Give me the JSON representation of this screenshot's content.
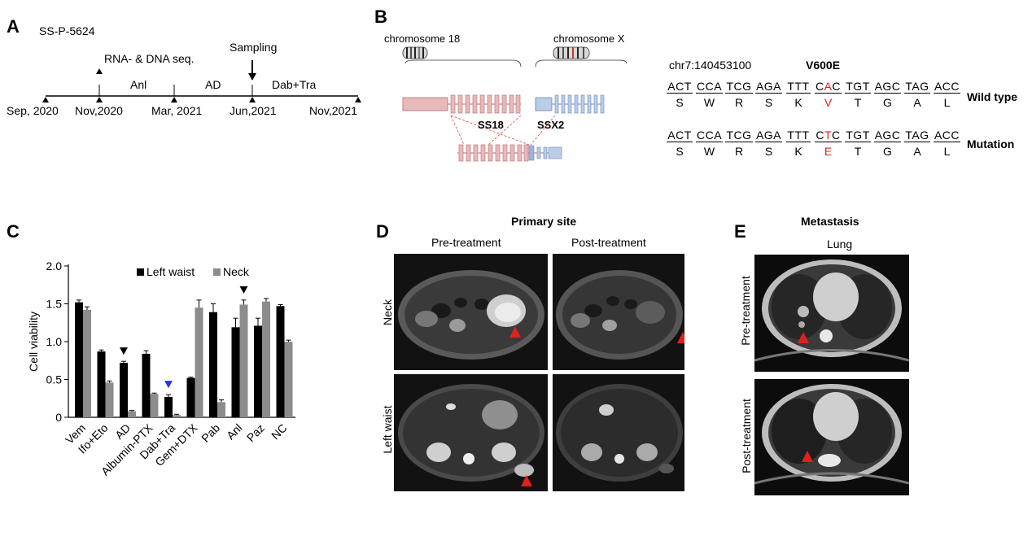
{
  "panels": {
    "a": "A",
    "b": "B",
    "c": "C",
    "d": "D",
    "e": "E"
  },
  "panelA": {
    "case_id": "SS-P-5624",
    "seq_label": "RNA- & DNA seq.",
    "sampling_label": "Sampling",
    "dates": [
      "Sep, 2020",
      "Nov,2020",
      "Mar, 2021",
      "Jun,2021",
      "Nov,2021"
    ],
    "treatments": [
      "Anl",
      "AD",
      "Dab+Tra"
    ]
  },
  "panelB": {
    "chr18": "chromosome 18",
    "chrX": "chromosome X",
    "gene1": "SS18",
    "gene2": "SSX2",
    "locus": "chr7:140453100",
    "variant": "V600E",
    "wildtype_label": "Wild type",
    "mutation_label": "Mutation",
    "wt_codons": [
      "ACT",
      "CCA",
      "TCG",
      "AGA",
      "TTT",
      "CAC",
      "TGT",
      "AGC",
      "TAG",
      "ACC"
    ],
    "mut_codons": [
      "ACT",
      "CCA",
      "TCG",
      "AGA",
      "TTT",
      "CTC",
      "TGT",
      "AGC",
      "TAG",
      "ACC"
    ],
    "wt_aa": [
      "S",
      "W",
      "R",
      "S",
      "K",
      "V",
      "T",
      "G",
      "A",
      "L"
    ],
    "mut_aa": [
      "S",
      "W",
      "R",
      "S",
      "K",
      "E",
      "T",
      "G",
      "A",
      "L"
    ],
    "highlight_color": "#e0201c"
  },
  "chart_data": {
    "type": "bar",
    "ylabel": "Cell viability",
    "ylim": [
      0,
      2.0
    ],
    "yticks": [
      "0",
      "0.5",
      "1.0",
      "1.5",
      "2.0"
    ],
    "categories": [
      "Vem",
      "Ifo+Eto",
      "AD",
      "Albumin-PTX",
      "Dab+Tra",
      "Gem+DTX",
      "Pab",
      "Anl",
      "Paz",
      "NC"
    ],
    "series": [
      {
        "name": "Left waist",
        "color": "#000000",
        "values": [
          1.52,
          0.87,
          0.72,
          0.84,
          0.27,
          0.52,
          1.39,
          1.19,
          1.21,
          1.47
        ],
        "errors": [
          0.03,
          0.02,
          0.02,
          0.04,
          0.03,
          0.01,
          0.11,
          0.12,
          0.1,
          0.02
        ]
      },
      {
        "name": "Neck",
        "color": "#8c8c8c",
        "values": [
          1.42,
          0.46,
          0.08,
          0.31,
          0.03,
          1.45,
          0.2,
          1.49,
          1.53,
          1.0
        ],
        "errors": [
          0.04,
          0.02,
          0.01,
          0.01,
          0.01,
          0.1,
          0.03,
          0.06,
          0.04,
          0.02
        ]
      }
    ],
    "markers": [
      {
        "category": "AD",
        "color": "#000000"
      },
      {
        "category": "Dab+Tra",
        "color": "#2637e8"
      },
      {
        "category": "Anl",
        "color": "#000000"
      }
    ]
  },
  "panelD": {
    "title": "Primary site",
    "col1": "Pre-treatment",
    "col2": "Post-treatment",
    "row1": "Neck",
    "row2": "Left waist"
  },
  "panelE": {
    "title": "Metastasis",
    "subtitle": "Lung",
    "row1": "Pre-treatment",
    "row2": "Post-treatment"
  }
}
